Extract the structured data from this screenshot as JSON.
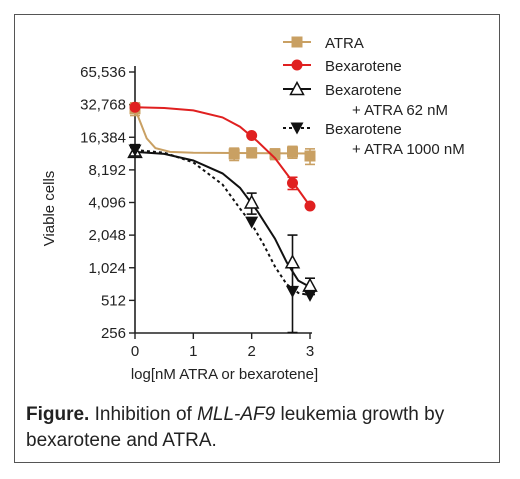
{
  "chart_data": {
    "type": "line",
    "xlabel": "log[nM ATRA or bexarotene]",
    "ylabel": "Viable cells",
    "x_ticks": [
      "0",
      "1",
      "2",
      "3"
    ],
    "y_ticks": [
      "256",
      "512",
      "1,024",
      "2,048",
      "4,096",
      "8,192",
      "16,384",
      "32,768",
      "65,536"
    ],
    "xlim": [
      0,
      3
    ],
    "ylim": [
      256,
      65536
    ],
    "y_scale": "log2",
    "legend_position": "top-right",
    "series": [
      {
        "name": "ATRA",
        "color": "#c9a063",
        "marker": "square",
        "line": "solid",
        "points": [
          {
            "x": 0,
            "y": 30000,
            "err": 4000
          },
          {
            "x": 1.7,
            "y": 11500,
            "err": 1500
          },
          {
            "x": 2.0,
            "y": 11800,
            "err": 1200
          },
          {
            "x": 2.4,
            "y": 11500,
            "err": 1300
          },
          {
            "x": 2.7,
            "y": 12000,
            "err": 1500
          },
          {
            "x": 3.0,
            "y": 11000,
            "err": 1800
          }
        ],
        "fit": [
          [
            0,
            30000
          ],
          [
            0.1,
            22000
          ],
          [
            0.2,
            16000
          ],
          [
            0.35,
            13000
          ],
          [
            0.6,
            12000
          ],
          [
            1.0,
            11800
          ],
          [
            3.0,
            11600
          ]
        ]
      },
      {
        "name": "Bexarotene",
        "color": "#e02020",
        "marker": "circle",
        "line": "solid",
        "points": [
          {
            "x": 0,
            "y": 31000,
            "err": 0
          },
          {
            "x": 2.0,
            "y": 17000,
            "err": 0
          },
          {
            "x": 2.7,
            "y": 6200,
            "err": 800
          },
          {
            "x": 3.0,
            "y": 3800,
            "err": 0
          }
        ],
        "fit": [
          [
            0,
            31000
          ],
          [
            0.5,
            30500
          ],
          [
            1.0,
            29000
          ],
          [
            1.5,
            25000
          ],
          [
            1.8,
            20500
          ],
          [
            2.1,
            15000
          ],
          [
            2.4,
            10500
          ],
          [
            2.7,
            6400
          ],
          [
            3.0,
            3800
          ]
        ]
      },
      {
        "name": "Bexarotene\n+ ATRA 62 nM",
        "color": "#111111",
        "marker": "triangle-open",
        "line": "solid",
        "points": [
          {
            "x": 0,
            "y": 12000,
            "err": 1200
          },
          {
            "x": 2.0,
            "y": 4100,
            "err": 900
          },
          {
            "x": 2.7,
            "y": 1150,
            "err": 900
          },
          {
            "x": 3.0,
            "y": 700,
            "err": 120
          }
        ],
        "fit": [
          [
            0,
            12000
          ],
          [
            0.5,
            11500
          ],
          [
            1.0,
            10000
          ],
          [
            1.5,
            7600
          ],
          [
            1.8,
            5600
          ],
          [
            2.1,
            3400
          ],
          [
            2.4,
            1900
          ],
          [
            2.6,
            1150
          ],
          [
            2.8,
            780
          ],
          [
            3.0,
            680
          ]
        ]
      },
      {
        "name": "Bexarotene\n+ ATRA 1000 nM",
        "color": "#111111",
        "marker": "triangle-down-filled",
        "line": "dashed",
        "points": [
          {
            "x": 0,
            "y": 12500,
            "err": 1500
          },
          {
            "x": 2.0,
            "y": 2700,
            "err": 0
          },
          {
            "x": 2.7,
            "y": 620,
            "err": 0
          },
          {
            "x": 3.0,
            "y": 570,
            "err": 0
          }
        ],
        "fit": [
          [
            0,
            12500
          ],
          [
            0.5,
            11800
          ],
          [
            1.0,
            9600
          ],
          [
            1.5,
            6000
          ],
          [
            1.8,
            3600
          ],
          [
            2.0,
            2600
          ],
          [
            2.2,
            1700
          ],
          [
            2.4,
            1050
          ],
          [
            2.6,
            720
          ],
          [
            2.8,
            600
          ],
          [
            3.0,
            570
          ]
        ]
      }
    ]
  },
  "caption": {
    "bold": "Figure.",
    "part1": " Inhibition of ",
    "italic": "MLL-AF9",
    "part2": " leukemia growth by bexarotene and ATRA."
  }
}
